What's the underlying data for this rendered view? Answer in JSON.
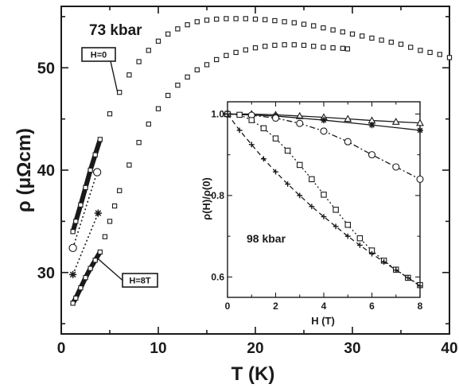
{
  "chart_data": [
    {
      "type": "scatter",
      "title": "73 kbar",
      "xlabel": "T (K)",
      "ylabel": "ρ (μΩcm)",
      "xlim": [
        0,
        40
      ],
      "ylim": [
        24,
        56
      ],
      "xticks": [
        0,
        10,
        20,
        30,
        40
      ],
      "yticks": [
        30,
        40,
        50
      ],
      "xtick_labels": [
        "0",
        "10",
        "20",
        "30",
        "40"
      ],
      "ytick_labels": [
        "30",
        "40",
        "50"
      ],
      "grid": false,
      "annotations": [
        {
          "label": "H=0",
          "x": 5.8,
          "y": 47.6
        },
        {
          "label": "H=8T",
          "x": 3.6,
          "y": 31.5
        }
      ],
      "series": [
        {
          "name": "H=0",
          "marker": "square",
          "x": [
            1.2,
            1.5,
            2.0,
            2.5,
            3.0,
            3.5,
            4.0,
            5.0,
            6.0,
            7.0,
            8.0,
            9.0,
            10.0,
            11.0,
            12.0,
            13.0,
            14.0,
            15.0,
            16.0,
            17.0,
            18.0,
            19.0,
            20.0,
            21.0,
            22.0,
            23.0,
            24.0,
            25.0,
            26.0,
            27.0,
            28.0,
            29.0,
            30.0,
            31.0,
            32.0,
            33.0,
            34.0,
            35.0,
            36.0,
            37.0,
            38.0,
            39.0,
            40.0
          ],
          "y": [
            34.0,
            35.0,
            36.6,
            38.3,
            40.0,
            41.5,
            43.0,
            45.5,
            47.6,
            49.3,
            50.6,
            51.7,
            52.6,
            53.3,
            53.8,
            54.2,
            54.5,
            54.65,
            54.75,
            54.8,
            54.8,
            54.8,
            54.75,
            54.7,
            54.6,
            54.5,
            54.4,
            54.25,
            54.1,
            53.9,
            53.7,
            53.5,
            53.3,
            53.1,
            52.9,
            52.7,
            52.5,
            52.3,
            52.0,
            51.7,
            51.5,
            51.3,
            51.0
          ]
        },
        {
          "name": "H=8T",
          "marker": "square",
          "x": [
            1.2,
            1.5,
            2.0,
            2.5,
            3.0,
            3.5,
            4.0,
            4.5,
            5.0,
            5.5,
            6.0,
            7.0,
            8.0,
            9.0,
            10.0,
            11.0,
            12.0,
            13.0,
            14.0,
            15.0,
            16.0,
            17.0,
            18.0,
            19.0,
            20.0,
            21.0,
            22.0,
            23.0,
            24.0,
            25.0,
            26.0,
            27.0,
            28.0,
            29.0,
            29.5
          ],
          "y": [
            27.0,
            27.5,
            28.5,
            29.5,
            30.4,
            31.2,
            32.0,
            33.5,
            35.0,
            36.5,
            38.0,
            40.5,
            42.7,
            44.5,
            46.0,
            47.3,
            48.3,
            49.1,
            49.8,
            50.3,
            50.8,
            51.2,
            51.5,
            51.75,
            51.95,
            52.1,
            52.2,
            52.25,
            52.25,
            52.2,
            52.1,
            52.0,
            51.95,
            51.9,
            51.85
          ]
        },
        {
          "name": "extrapolated-circle",
          "marker": "circle",
          "x": [
            1.2,
            3.7
          ],
          "y": [
            32.4,
            39.8
          ]
        },
        {
          "name": "extrapolated-asterisk",
          "marker": "asterisk",
          "x": [
            1.2,
            3.8
          ],
          "y": [
            29.8,
            35.8
          ]
        }
      ]
    },
    {
      "type": "line",
      "title": "98 kbar",
      "xlabel": "H (T)",
      "ylabel": "ρ(H)/ρ(0)",
      "xlim": [
        0,
        8
      ],
      "ylim": [
        0.55,
        1.03
      ],
      "xticks": [
        0,
        2,
        4,
        6,
        8
      ],
      "yticks": [
        0.6,
        0.8,
        1.0
      ],
      "xtick_labels": [
        "0",
        "2",
        "4",
        "6",
        "8"
      ],
      "ytick_labels": [
        "0.6",
        "0.8",
        "1.0"
      ],
      "grid": false,
      "legend": "none",
      "series": [
        {
          "marker": "triangle",
          "dash": "solid",
          "x": [
            0,
            1,
            2,
            3,
            4,
            5,
            6,
            7,
            8
          ],
          "y": [
            1.0,
            1.0,
            0.998,
            0.995,
            0.992,
            0.988,
            0.984,
            0.981,
            0.978
          ]
        },
        {
          "marker": "asterisk",
          "dash": "solid",
          "x": [
            0,
            2,
            4,
            6,
            8
          ],
          "y": [
            1.0,
            0.995,
            0.985,
            0.973,
            0.96
          ]
        },
        {
          "marker": "circle",
          "dash": "dashdot",
          "x": [
            0,
            1,
            2,
            3,
            4,
            5,
            6,
            7,
            8
          ],
          "y": [
            1.0,
            0.997,
            0.99,
            0.977,
            0.958,
            0.932,
            0.9,
            0.87,
            0.84
          ]
        },
        {
          "marker": "square",
          "dash": "dotted",
          "x": [
            0,
            0.5,
            1.0,
            1.5,
            2.0,
            2.5,
            3.0,
            3.5,
            4.0,
            4.5,
            5.0,
            5.5,
            6.0,
            6.5,
            7.0,
            7.5,
            8.0
          ],
          "y": [
            1.0,
            0.998,
            0.985,
            0.965,
            0.94,
            0.91,
            0.875,
            0.84,
            0.802,
            0.765,
            0.728,
            0.695,
            0.665,
            0.64,
            0.618,
            0.598,
            0.58
          ]
        },
        {
          "marker": "plus",
          "dash": "dashed",
          "x": [
            0,
            0.5,
            1.0,
            1.5,
            2.0,
            2.5,
            3.0,
            3.5,
            4.0,
            4.5,
            5.0,
            5.5,
            6.0,
            6.5,
            7.0,
            7.5,
            8.0
          ],
          "y": [
            1.0,
            0.96,
            0.925,
            0.89,
            0.858,
            0.828,
            0.8,
            0.773,
            0.748,
            0.724,
            0.7,
            0.678,
            0.657,
            0.637,
            0.617,
            0.598,
            0.578
          ]
        }
      ]
    }
  ]
}
